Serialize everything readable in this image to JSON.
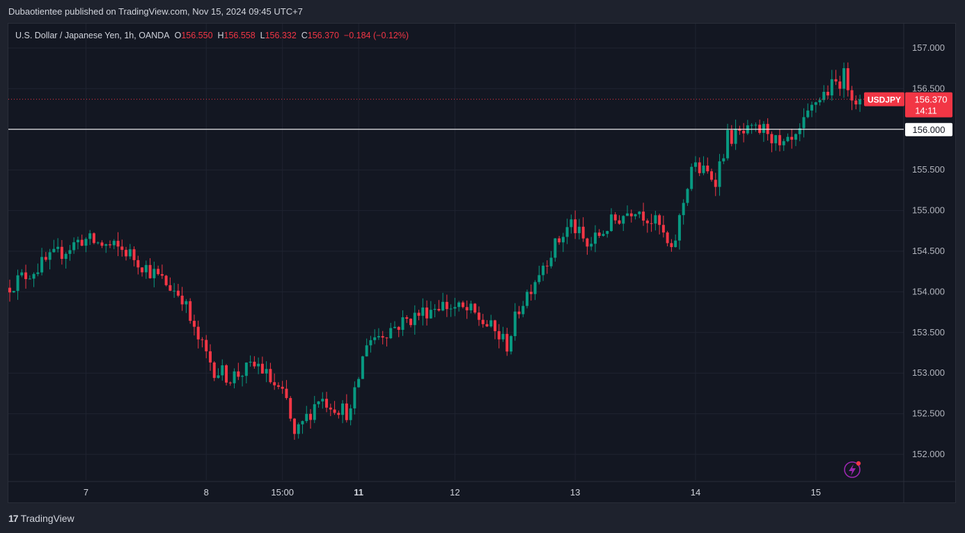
{
  "header": {
    "published": "Dubaotientee published on TradingView.com, Nov 15, 2024 09:45 UTC+7"
  },
  "legend": {
    "symbol": "U.S. Dollar / Japanese Yen, 1h, OANDA",
    "o_label": "O",
    "o_value": "156.550",
    "h_label": "H",
    "h_value": "156.558",
    "l_label": "L",
    "l_value": "156.332",
    "c_label": "C",
    "c_value": "156.370",
    "change": "−0.184 (−0.12%)"
  },
  "footer": {
    "brand": "TradingView"
  },
  "colors": {
    "up": "#089981",
    "down": "#f23645",
    "background": "#131722",
    "grid": "#1f2330"
  },
  "chart_data": {
    "type": "candlestick",
    "symbol": "USDJPY",
    "interval": "1h",
    "y_ticks": [
      "157.000",
      "156.500",
      "156.000",
      "155.500",
      "155.000",
      "154.500",
      "154.000",
      "153.500",
      "153.000",
      "152.500",
      "152.000"
    ],
    "ylim": [
      151.62,
      157.27
    ],
    "x_ticks": [
      {
        "label": "7",
        "bold": false,
        "index": 19
      },
      {
        "label": "8",
        "bold": false,
        "index": 49
      },
      {
        "label": "15:00",
        "bold": false,
        "index": 68
      },
      {
        "label": "11",
        "bold": true,
        "index": 87
      },
      {
        "label": "12",
        "bold": false,
        "index": 111
      },
      {
        "label": "13",
        "bold": false,
        "index": 141
      },
      {
        "label": "14",
        "bold": false,
        "index": 171
      },
      {
        "label": "15",
        "bold": false,
        "index": 201
      }
    ],
    "candle_count": 213,
    "start": 154.05,
    "end": 156.37,
    "anchors": [
      [
        0,
        154.05
      ],
      [
        19,
        154.65
      ],
      [
        30,
        154.5
      ],
      [
        40,
        154.1
      ],
      [
        44,
        153.95
      ],
      [
        47,
        153.5
      ],
      [
        52,
        153.05
      ],
      [
        56,
        152.95
      ],
      [
        63,
        153.1
      ],
      [
        70,
        152.65
      ],
      [
        72,
        152.2
      ],
      [
        78,
        152.7
      ],
      [
        86,
        152.5
      ],
      [
        90,
        153.4
      ],
      [
        100,
        153.65
      ],
      [
        108,
        153.85
      ],
      [
        116,
        153.75
      ],
      [
        121,
        153.55
      ],
      [
        125,
        153.35
      ],
      [
        128,
        153.8
      ],
      [
        134,
        154.35
      ],
      [
        141,
        154.85
      ],
      [
        145,
        154.55
      ],
      [
        151,
        154.85
      ],
      [
        157,
        155.05
      ],
      [
        163,
        154.8
      ],
      [
        166,
        154.45
      ],
      [
        171,
        155.55
      ],
      [
        177,
        155.4
      ],
      [
        180,
        155.9
      ],
      [
        190,
        156.0
      ],
      [
        193,
        155.75
      ],
      [
        197,
        155.85
      ],
      [
        202,
        156.35
      ],
      [
        209,
        156.65
      ],
      [
        212,
        156.37
      ]
    ],
    "price_line": {
      "label": "USDJPY",
      "value": "156.370",
      "countdown": "14:11"
    },
    "level_line": {
      "value": "156.000"
    }
  }
}
